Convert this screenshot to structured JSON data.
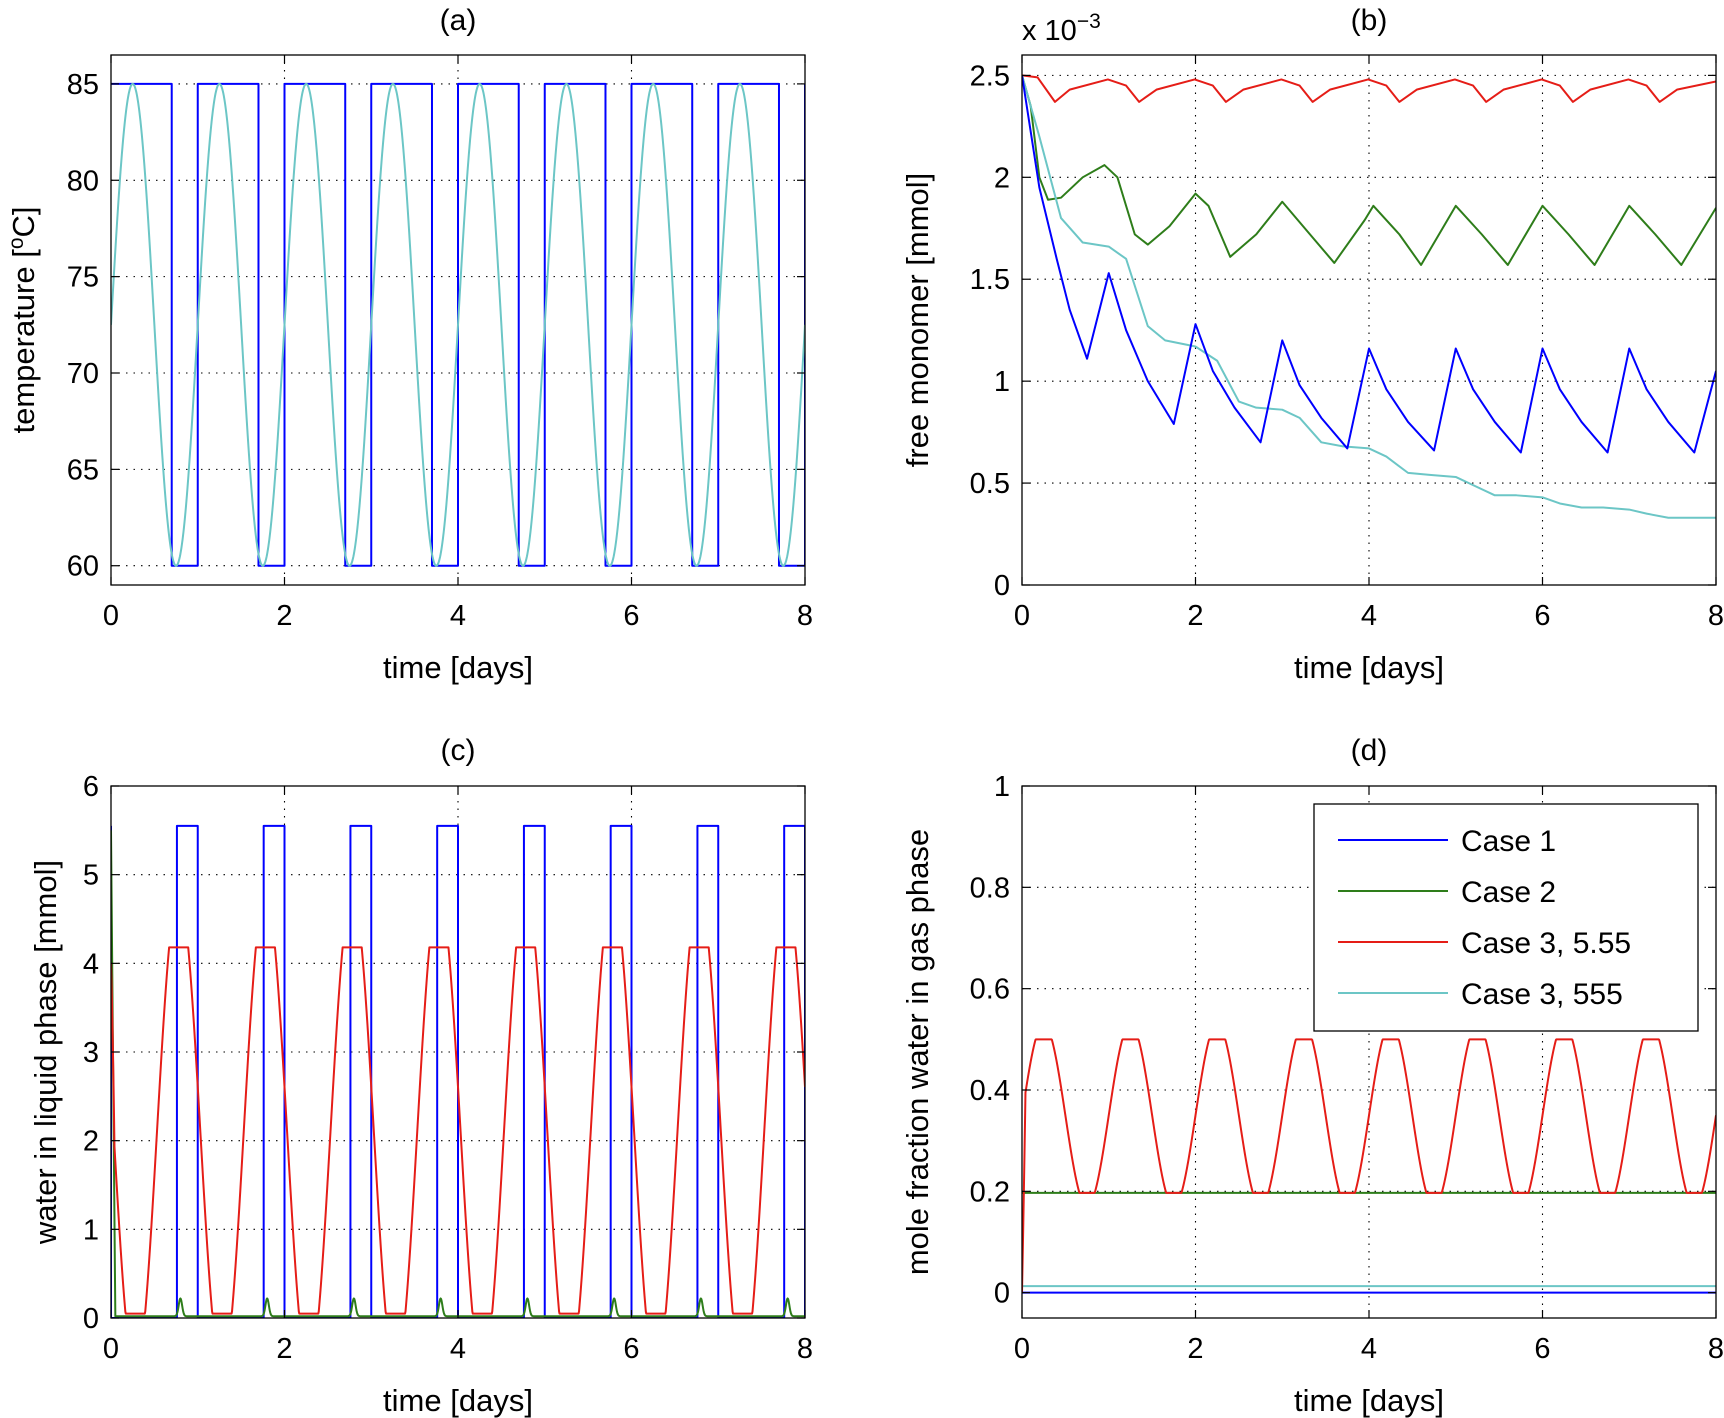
{
  "colors": {
    "case1": "#0000ff",
    "case2": "#2e7d1a",
    "case3_555": "#e51d17",
    "case3_555_cyan": "#6cc6c6"
  },
  "legend": {
    "entries": [
      "Case 1",
      "Case 2",
      "Case 3, 5.55",
      "Case 3, 555"
    ]
  },
  "chart_data": [
    {
      "id": "a",
      "type": "line",
      "title": "(a)",
      "xlabel": "time [days]",
      "ylabel_main": "temperature [",
      "ylabel_sup": "o",
      "ylabel_end": "C]",
      "xlim": [
        0,
        8
      ],
      "ylim": [
        59,
        86.5
      ],
      "xticks": [
        0,
        2,
        4,
        6,
        8
      ],
      "yticks": [
        60,
        65,
        70,
        75,
        80,
        85
      ],
      "xtick_labels": [
        "0",
        "2",
        "4",
        "6",
        "8"
      ],
      "ytick_labels": [
        "60",
        "65",
        "70",
        "75",
        "80",
        "85"
      ],
      "grid": true,
      "series": [
        {
          "name": "Case 1",
          "color_key": "case1",
          "model": "square",
          "params": {
            "high": 85,
            "low": 60,
            "period": 1,
            "high_until": 0.7,
            "start": 85
          }
        },
        {
          "name": "Case 3, 555",
          "color_key": "case3_555_cyan",
          "model": "sine",
          "params": {
            "mean": 72.5,
            "amp": 12.5,
            "period": 1,
            "peak_at": 0.25
          }
        }
      ]
    },
    {
      "id": "b",
      "type": "line",
      "title": "(b)",
      "xlabel": "time [days]",
      "ylabel": "free monomer [mmol]",
      "multiplier_base": "x 10",
      "multiplier_exp": "−3",
      "xlim": [
        0,
        8
      ],
      "ylim": [
        0,
        2.6
      ],
      "xticks": [
        0,
        2,
        4,
        6,
        8
      ],
      "yticks": [
        0,
        0.5,
        1,
        1.5,
        2,
        2.5
      ],
      "xtick_labels": [
        "0",
        "2",
        "4",
        "6",
        "8"
      ],
      "ytick_labels": [
        "0",
        "0.5",
        "1",
        "1.5",
        "2",
        "2.5"
      ],
      "grid": true,
      "series": [
        {
          "name": "Case 3, 5.55",
          "color_key": "case3_555",
          "points": [
            [
              0,
              2.5
            ],
            [
              0.18,
              2.49
            ],
            [
              0.38,
              2.37
            ],
            [
              0.55,
              2.43
            ],
            [
              0.99,
              2.48
            ],
            [
              1.2,
              2.45
            ],
            [
              1.35,
              2.37
            ],
            [
              1.55,
              2.43
            ],
            [
              1.99,
              2.48
            ],
            [
              2.2,
              2.45
            ],
            [
              2.35,
              2.37
            ],
            [
              2.55,
              2.43
            ],
            [
              2.99,
              2.48
            ],
            [
              3.2,
              2.45
            ],
            [
              3.35,
              2.37
            ],
            [
              3.55,
              2.43
            ],
            [
              3.99,
              2.48
            ],
            [
              4.2,
              2.45
            ],
            [
              4.35,
              2.37
            ],
            [
              4.55,
              2.43
            ],
            [
              4.99,
              2.48
            ],
            [
              5.2,
              2.45
            ],
            [
              5.35,
              2.37
            ],
            [
              5.55,
              2.43
            ],
            [
              5.99,
              2.48
            ],
            [
              6.2,
              2.45
            ],
            [
              6.35,
              2.37
            ],
            [
              6.55,
              2.43
            ],
            [
              6.99,
              2.48
            ],
            [
              7.2,
              2.45
            ],
            [
              7.35,
              2.37
            ],
            [
              7.55,
              2.43
            ],
            [
              8,
              2.47
            ]
          ]
        },
        {
          "name": "Case 2",
          "color_key": "case2",
          "points": [
            [
              0,
              2.5
            ],
            [
              0.1,
              2.35
            ],
            [
              0.2,
              2.0
            ],
            [
              0.3,
              1.89
            ],
            [
              0.45,
              1.9
            ],
            [
              0.7,
              2.0
            ],
            [
              0.95,
              2.06
            ],
            [
              1.1,
              2.0
            ],
            [
              1.3,
              1.72
            ],
            [
              1.45,
              1.67
            ],
            [
              1.7,
              1.76
            ],
            [
              2.0,
              1.92
            ],
            [
              2.15,
              1.86
            ],
            [
              2.4,
              1.61
            ],
            [
              2.7,
              1.72
            ],
            [
              3.0,
              1.88
            ],
            [
              3.3,
              1.73
            ],
            [
              3.6,
              1.58
            ],
            [
              3.95,
              1.79
            ],
            [
              4.05,
              1.86
            ],
            [
              4.35,
              1.72
            ],
            [
              4.6,
              1.57
            ],
            [
              5.0,
              1.86
            ],
            [
              5.3,
              1.72
            ],
            [
              5.6,
              1.57
            ],
            [
              6.0,
              1.86
            ],
            [
              6.3,
              1.72
            ],
            [
              6.6,
              1.57
            ],
            [
              7.0,
              1.86
            ],
            [
              7.3,
              1.72
            ],
            [
              7.6,
              1.57
            ],
            [
              8.0,
              1.85
            ]
          ]
        },
        {
          "name": "Case 3, 555",
          "color_key": "case3_555_cyan",
          "points": [
            [
              0,
              2.5
            ],
            [
              0.2,
              2.2
            ],
            [
              0.45,
              1.8
            ],
            [
              0.7,
              1.68
            ],
            [
              1.0,
              1.66
            ],
            [
              1.2,
              1.6
            ],
            [
              1.45,
              1.27
            ],
            [
              1.65,
              1.2
            ],
            [
              2.0,
              1.17
            ],
            [
              2.25,
              1.1
            ],
            [
              2.5,
              0.9
            ],
            [
              2.7,
              0.87
            ],
            [
              3.0,
              0.86
            ],
            [
              3.2,
              0.82
            ],
            [
              3.45,
              0.7
            ],
            [
              3.7,
              0.68
            ],
            [
              4.0,
              0.67
            ],
            [
              4.2,
              0.63
            ],
            [
              4.45,
              0.55
            ],
            [
              4.7,
              0.54
            ],
            [
              5.0,
              0.53
            ],
            [
              5.2,
              0.49
            ],
            [
              5.45,
              0.44
            ],
            [
              5.7,
              0.44
            ],
            [
              6.0,
              0.43
            ],
            [
              6.2,
              0.4
            ],
            [
              6.45,
              0.38
            ],
            [
              6.7,
              0.38
            ],
            [
              7.0,
              0.37
            ],
            [
              7.2,
              0.35
            ],
            [
              7.45,
              0.33
            ],
            [
              7.7,
              0.33
            ],
            [
              8.0,
              0.33
            ]
          ]
        },
        {
          "name": "Case 1",
          "color_key": "case1",
          "points": [
            [
              0,
              2.5
            ],
            [
              0.2,
              1.95
            ],
            [
              0.4,
              1.6
            ],
            [
              0.55,
              1.35
            ],
            [
              0.75,
              1.11
            ],
            [
              1.0,
              1.53
            ],
            [
              1.2,
              1.25
            ],
            [
              1.45,
              1.0
            ],
            [
              1.75,
              0.79
            ],
            [
              2.0,
              1.28
            ],
            [
              2.2,
              1.05
            ],
            [
              2.45,
              0.87
            ],
            [
              2.75,
              0.7
            ],
            [
              3.0,
              1.2
            ],
            [
              3.2,
              0.98
            ],
            [
              3.45,
              0.82
            ],
            [
              3.75,
              0.67
            ],
            [
              4.0,
              1.16
            ],
            [
              4.2,
              0.96
            ],
            [
              4.45,
              0.8
            ],
            [
              4.75,
              0.66
            ],
            [
              5.0,
              1.16
            ],
            [
              5.2,
              0.96
            ],
            [
              5.45,
              0.8
            ],
            [
              5.75,
              0.65
            ],
            [
              6.0,
              1.16
            ],
            [
              6.2,
              0.96
            ],
            [
              6.45,
              0.8
            ],
            [
              6.75,
              0.65
            ],
            [
              7.0,
              1.16
            ],
            [
              7.2,
              0.96
            ],
            [
              7.45,
              0.8
            ],
            [
              7.75,
              0.65
            ],
            [
              8.0,
              1.05
            ]
          ]
        }
      ]
    },
    {
      "id": "c",
      "type": "line",
      "title": "(c)",
      "xlabel": "time [days]",
      "ylabel": "water in liquid phase [mmol]",
      "xlim": [
        0,
        8
      ],
      "ylim": [
        0,
        6
      ],
      "xticks": [
        0,
        2,
        4,
        6,
        8
      ],
      "yticks": [
        0,
        1,
        2,
        3,
        4,
        5,
        6
      ],
      "xtick_labels": [
        "0",
        "2",
        "4",
        "6",
        "8"
      ],
      "ytick_labels": [
        "0",
        "1",
        "2",
        "3",
        "4",
        "5",
        "6"
      ],
      "grid": true,
      "series": [
        {
          "name": "Case 1",
          "color_key": "case1",
          "model": "square",
          "params": {
            "high": 5.55,
            "low": 0.0,
            "period": 1,
            "high_from": 0.76,
            "high_until": 1.0,
            "start": 5.55
          }
        },
        {
          "name": "Case 2",
          "color_key": "case2",
          "model": "blips",
          "params": {
            "base": 0.02,
            "peak": 0.22,
            "centers_offset": 0.8,
            "period": 1,
            "width": 0.04
          }
        },
        {
          "name": "Case 3, 5.55",
          "color_key": "case3_555",
          "model": "clipped_sine",
          "params": {
            "mean": 2.1,
            "amp": 2.7,
            "min": 0.05,
            "max": 4.18,
            "period": 1,
            "peak_at": 0.78,
            "start": 4.0
          }
        }
      ]
    },
    {
      "id": "d",
      "type": "line",
      "title": "(d)",
      "xlabel": "time [days]",
      "ylabel": "mole fraction water in gas phase",
      "xlim": [
        0,
        8
      ],
      "ylim": [
        -0.05,
        1
      ],
      "xticks": [
        0,
        2,
        4,
        6,
        8
      ],
      "yticks": [
        0,
        0.2,
        0.4,
        0.6,
        0.8,
        1
      ],
      "xtick_labels": [
        "0",
        "2",
        "4",
        "6",
        "8"
      ],
      "ytick_labels": [
        "0",
        "0.2",
        "0.4",
        "0.6",
        "0.8",
        "1"
      ],
      "grid": true,
      "legend_position": "top-right",
      "series": [
        {
          "name": "Case 1",
          "color_key": "case1",
          "points": [
            [
              0,
              0.0
            ],
            [
              8,
              0.0
            ]
          ]
        },
        {
          "name": "Case 2",
          "color_key": "case2",
          "points": [
            [
              0,
              0.197
            ],
            [
              8,
              0.197
            ]
          ]
        },
        {
          "name": "Case 3, 555",
          "color_key": "case3_555_cyan",
          "points": [
            [
              0,
              0.013
            ],
            [
              8,
              0.013
            ]
          ]
        },
        {
          "name": "Case 3, 5.55",
          "color_key": "case3_555",
          "model": "clipped_sine",
          "params": {
            "mean": 0.35,
            "amp": 0.18,
            "min": 0.197,
            "max": 0.5,
            "period": 1,
            "peak_at": 0.25,
            "start": 0.0
          }
        }
      ]
    }
  ]
}
